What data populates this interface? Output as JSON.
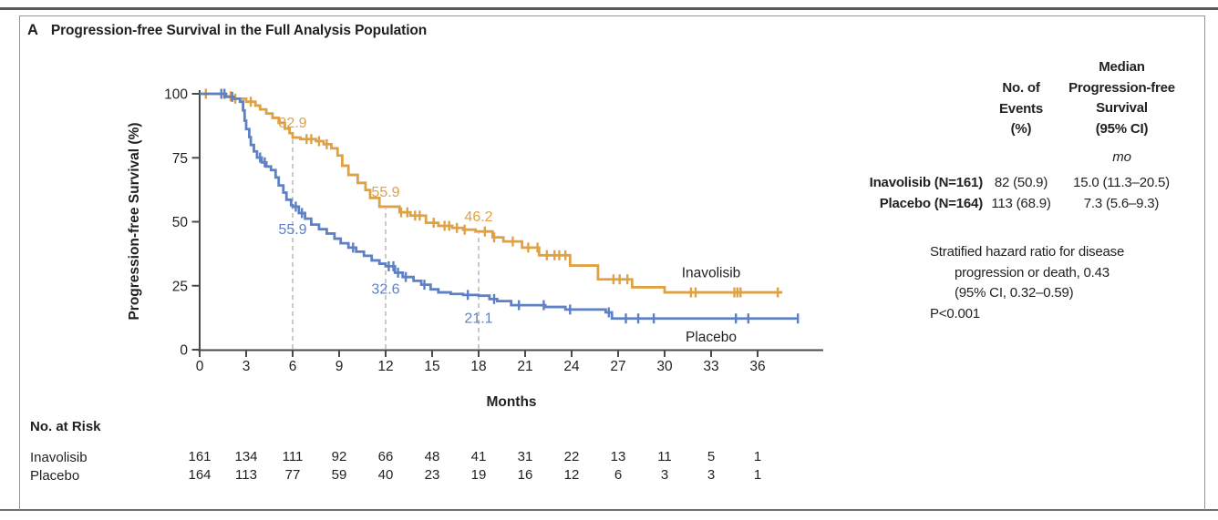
{
  "figure": {
    "panel_label": "A",
    "title": "Progression-free Survival in the Full Analysis Population"
  },
  "chart_data": {
    "type": "km_step",
    "title": "Progression-free Survival in the Full Analysis Population",
    "xlabel": "Months",
    "ylabel": "Progression-free Survival (%)",
    "xlim": [
      0,
      40
    ],
    "ylim": [
      0,
      100
    ],
    "x_ticks": [
      0,
      3,
      6,
      9,
      12,
      15,
      18,
      21,
      24,
      27,
      30,
      33,
      36
    ],
    "y_ticks": [
      0,
      25,
      50,
      75,
      100
    ],
    "grid": false,
    "dashed_months": [
      6,
      12,
      18
    ],
    "colors": {
      "inavolisib": "#DEA244",
      "placebo": "#5E80C5",
      "dashed_line": "#B3B3B3",
      "axis": "#4A4A4A",
      "text": "#231F20"
    },
    "series": [
      {
        "name": "Inavolisib",
        "color": "#DEA244",
        "landmark_side": "above",
        "label_anchor": {
          "month": 33,
          "pct": 30
        },
        "landmarks": [
          {
            "month": 6,
            "label": "82.9"
          },
          {
            "month": 12,
            "label": "55.9"
          },
          {
            "month": 18,
            "label": "46.2"
          }
        ],
        "steps": [
          [
            0,
            100
          ],
          [
            1.6,
            99
          ],
          [
            2.1,
            98.1
          ],
          [
            3.0,
            96.9
          ],
          [
            3.6,
            95.4
          ],
          [
            3.9,
            93.9
          ],
          [
            4.3,
            92.3
          ],
          [
            4.7,
            90.6
          ],
          [
            5.1,
            88.6
          ],
          [
            5.5,
            86.4
          ],
          [
            5.8,
            84.6
          ],
          [
            6.0,
            82.9
          ],
          [
            6.5,
            82.3
          ],
          [
            7.5,
            81.5
          ],
          [
            8.0,
            80.3
          ],
          [
            8.5,
            78.7
          ],
          [
            8.9,
            75.9
          ],
          [
            9.2,
            71.9
          ],
          [
            9.6,
            68.3
          ],
          [
            10.2,
            65.2
          ],
          [
            10.7,
            62.4
          ],
          [
            11.0,
            59.3
          ],
          [
            11.6,
            55.9
          ],
          [
            12.9,
            53.7
          ],
          [
            13.6,
            52.4
          ],
          [
            14.6,
            49.6
          ],
          [
            15.4,
            48.4
          ],
          [
            16.3,
            47.6
          ],
          [
            17.0,
            46.9
          ],
          [
            17.8,
            46.2
          ],
          [
            18.9,
            43.9
          ],
          [
            19.6,
            42.3
          ],
          [
            20.8,
            39.9
          ],
          [
            21.9,
            36.9
          ],
          [
            23.9,
            32.9
          ],
          [
            25.7,
            27.5
          ],
          [
            27.9,
            24.4
          ],
          [
            30.0,
            22.4
          ],
          [
            37.6,
            22.4
          ]
        ],
        "censors": [
          0.4,
          2.0,
          2.3,
          3.3,
          6.9,
          7.2,
          7.7,
          8.2,
          13.0,
          13.4,
          13.9,
          14.2,
          15.1,
          15.8,
          16.1,
          16.6,
          17.1,
          18.4,
          19.0,
          20.2,
          21.2,
          21.8,
          22.4,
          22.9,
          23.2,
          23.6,
          26.7,
          27.1,
          27.6,
          31.7,
          32.0,
          34.5,
          34.7,
          34.9,
          37.3
        ]
      },
      {
        "name": "Placebo",
        "color": "#5E80C5",
        "landmark_side": "below",
        "label_anchor": {
          "month": 33,
          "pct": 5
        },
        "landmarks": [
          {
            "month": 6,
            "label": "55.9"
          },
          {
            "month": 12,
            "label": "32.6"
          },
          {
            "month": 18,
            "label": "21.1"
          }
        ],
        "steps": [
          [
            0,
            100
          ],
          [
            1.7,
            98.8
          ],
          [
            2.2,
            98.1
          ],
          [
            2.6,
            96.9
          ],
          [
            2.8,
            93.5
          ],
          [
            2.9,
            89.5
          ],
          [
            3.0,
            86.2
          ],
          [
            3.2,
            83.1
          ],
          [
            3.3,
            80
          ],
          [
            3.5,
            77.5
          ],
          [
            3.7,
            75.1
          ],
          [
            4.0,
            73.2
          ],
          [
            4.3,
            71.6
          ],
          [
            4.6,
            70.2
          ],
          [
            4.9,
            67.3
          ],
          [
            5.1,
            64.2
          ],
          [
            5.4,
            61.4
          ],
          [
            5.6,
            58.6
          ],
          [
            5.9,
            56.5
          ],
          [
            6.0,
            55.9
          ],
          [
            6.4,
            53.4
          ],
          [
            6.8,
            51.2
          ],
          [
            7.2,
            48.9
          ],
          [
            7.7,
            47.1
          ],
          [
            8.2,
            45.4
          ],
          [
            8.7,
            43.4
          ],
          [
            9.1,
            41.6
          ],
          [
            9.6,
            39.9
          ],
          [
            10.1,
            38.3
          ],
          [
            10.6,
            36.7
          ],
          [
            11.1,
            34.9
          ],
          [
            11.6,
            33.6
          ],
          [
            12.0,
            32.6
          ],
          [
            12.6,
            30.1
          ],
          [
            13.1,
            28.4
          ],
          [
            13.8,
            26.9
          ],
          [
            14.3,
            25.4
          ],
          [
            14.9,
            23.6
          ],
          [
            15.4,
            22.4
          ],
          [
            16.2,
            21.8
          ],
          [
            17.0,
            21.4
          ],
          [
            18.0,
            21.1
          ],
          [
            18.7,
            19.8
          ],
          [
            19.2,
            19.0
          ],
          [
            20.1,
            17.4
          ],
          [
            22.3,
            16.7
          ],
          [
            23.6,
            15.7
          ],
          [
            26.2,
            14.6
          ],
          [
            26.6,
            12.2
          ],
          [
            38.6,
            12.2
          ]
        ],
        "censors": [
          1.4,
          1.6,
          2.1,
          3.9,
          4.2,
          6.2,
          6.6,
          9.9,
          12.2,
          12.5,
          12.8,
          13.3,
          14.5,
          17.3,
          19.0,
          20.6,
          22.2,
          23.9,
          26.4,
          27.5,
          28.3,
          29.3,
          34.6,
          35.4,
          38.6
        ]
      }
    ]
  },
  "stats_table": {
    "events_header": "No. of\nEvents\n(%)",
    "median_header": "Median\nProgression-free\nSurvival\n(95% CI)",
    "units": "mo",
    "rows": [
      {
        "label": "Inavolisib (N=161)",
        "events": "82 (50.9)",
        "median": "15.0 (11.3–20.5)"
      },
      {
        "label": "Placebo (N=164)",
        "events": "113 (68.9)",
        "median": "7.3 (5.6–9.3)"
      }
    ]
  },
  "hazard_text": {
    "lines": [
      "Stratified hazard ratio for disease",
      "progression or death, 0.43",
      "(95% CI, 0.32–0.59)",
      "P<0.001"
    ]
  },
  "risk_table": {
    "title": "No. at Risk",
    "months": [
      0,
      3,
      6,
      9,
      12,
      15,
      18,
      21,
      24,
      27,
      30,
      33,
      36
    ],
    "rows": [
      {
        "label": "Inavolisib",
        "counts": [
          161,
          134,
          111,
          92,
          66,
          48,
          41,
          31,
          22,
          13,
          11,
          5,
          1
        ]
      },
      {
        "label": "Placebo",
        "counts": [
          164,
          113,
          77,
          59,
          40,
          23,
          19,
          16,
          12,
          6,
          3,
          3,
          1
        ]
      }
    ]
  }
}
